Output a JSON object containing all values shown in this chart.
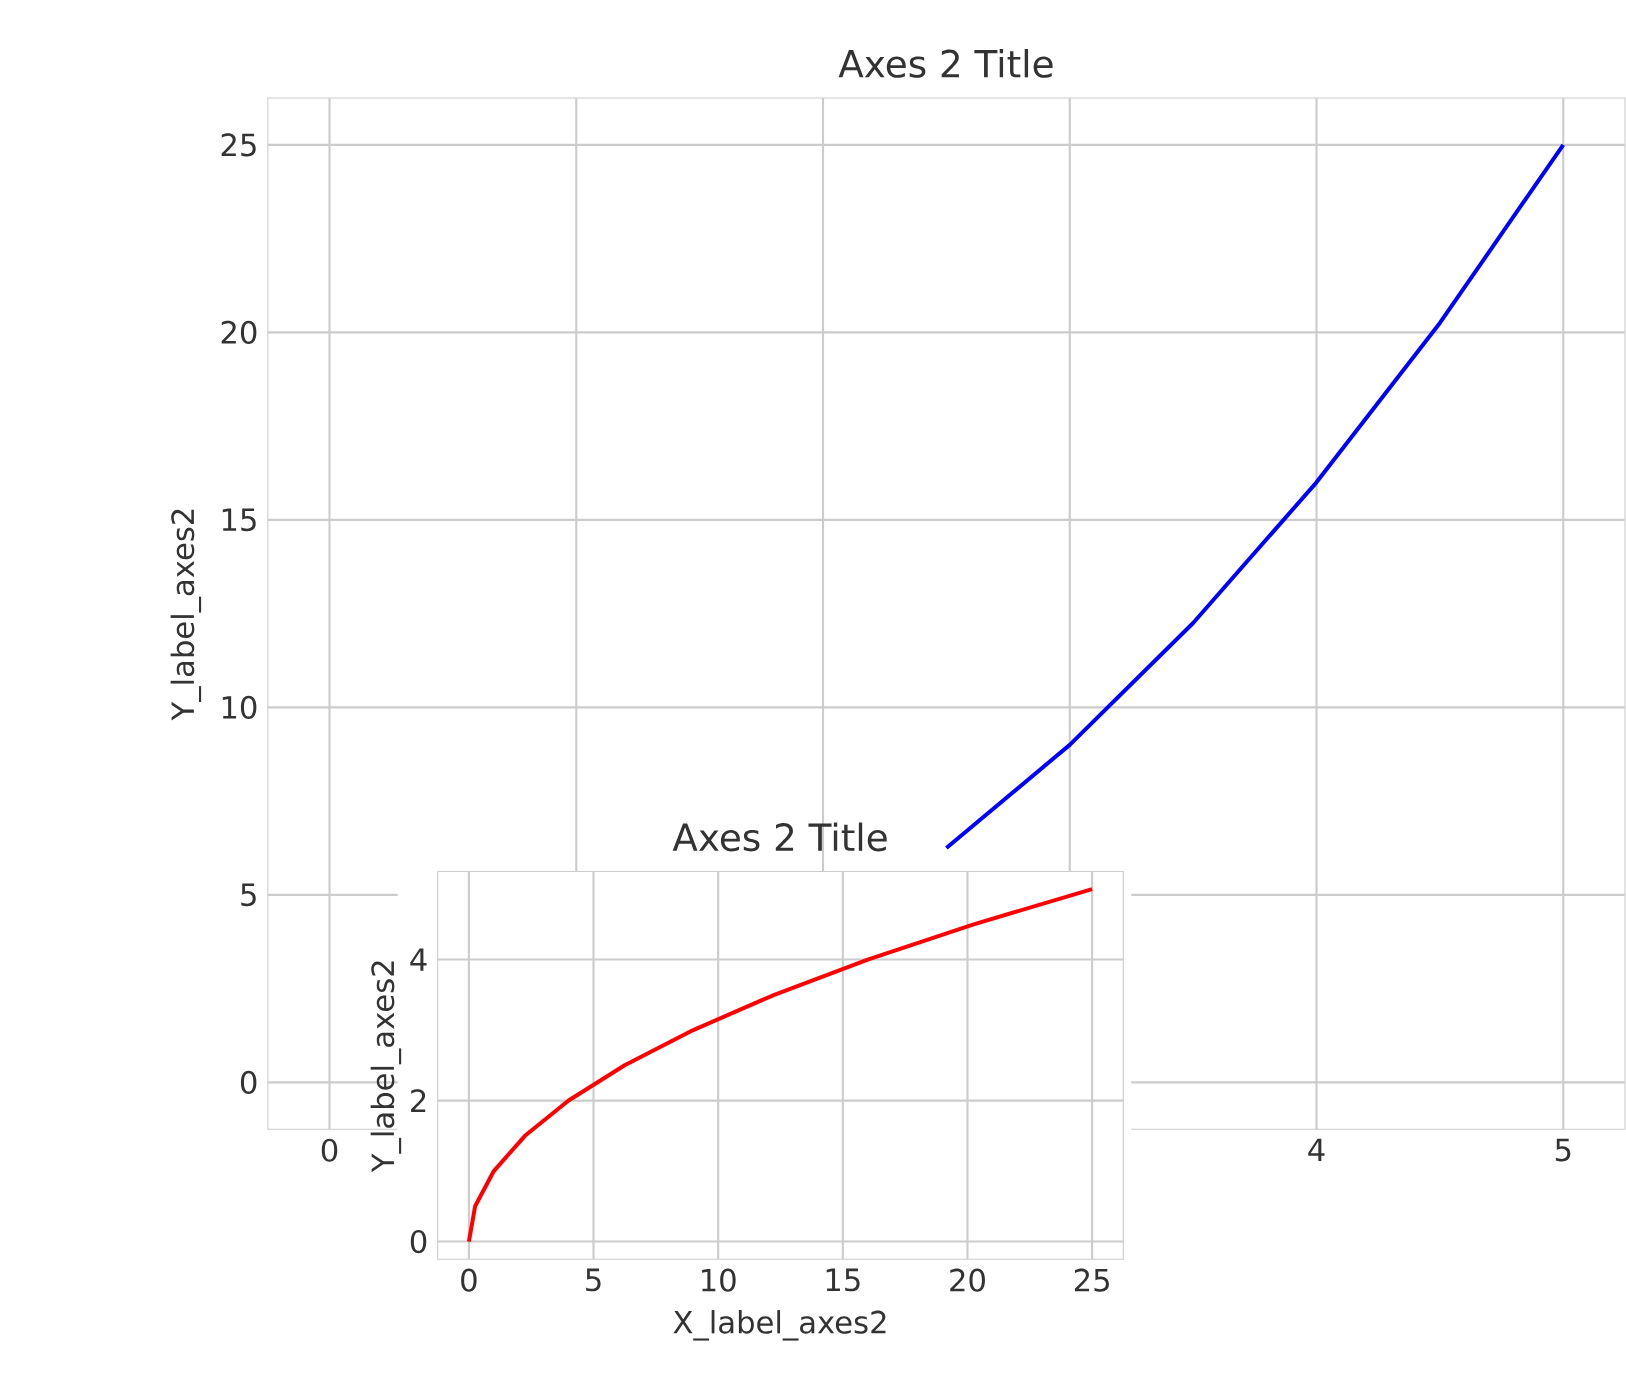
{
  "chart_data": [
    {
      "type": "line",
      "title": "Axes 2 Title",
      "ylabel": "Y_label_axes2",
      "x": [
        2.5,
        3,
        3.5,
        4,
        4.5,
        5
      ],
      "series": [
        {
          "color": "#0000ff",
          "values": [
            6.25,
            9,
            12.25,
            16,
            20.25,
            25
          ]
        }
      ],
      "xlim": [
        -0.25,
        5.25
      ],
      "ylim": [
        -1.25,
        26.25
      ],
      "xticks": [
        0,
        {
          "value": 1,
          "label": null
        },
        {
          "value": 2,
          "label": null
        },
        {
          "value": 3,
          "label": null
        },
        4,
        5
      ],
      "yticks": [
        0,
        5,
        10,
        15,
        20,
        25
      ],
      "grid": true
    },
    {
      "type": "line",
      "title": "Axes 2 Title",
      "xlabel": "X_label_axes2",
      "ylabel": "Y_label_axes2",
      "x": [
        0,
        0.25,
        1,
        2.25,
        4,
        6.25,
        9,
        12.25,
        16,
        20.25,
        25
      ],
      "series": [
        {
          "color": "#ff0000",
          "values": [
            0,
            0.5,
            1,
            1.5,
            2,
            2.5,
            3,
            3.5,
            4,
            4.5,
            5
          ]
        }
      ],
      "xlim": [
        -1.25,
        26.25
      ],
      "ylim": [
        -0.25,
        5.25
      ],
      "xticks": [
        0,
        5,
        10,
        15,
        20,
        25
      ],
      "yticks": [
        0,
        2,
        4
      ],
      "grid": true
    }
  ]
}
